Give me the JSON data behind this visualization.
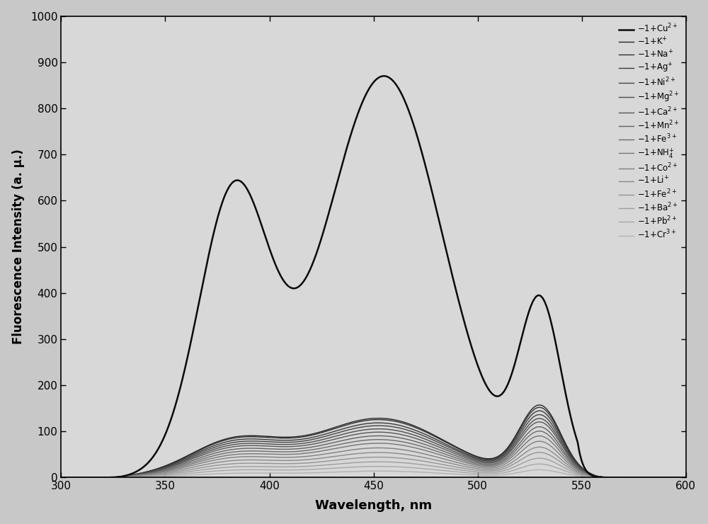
{
  "xlabel": "Wavelength, nm",
  "ylabel": "Fluorescence Intensity (a. μ.)",
  "xlim": [
    300,
    600
  ],
  "ylim": [
    0,
    1000
  ],
  "yticks": [
    0,
    100,
    200,
    300,
    400,
    500,
    600,
    700,
    800,
    900,
    1000
  ],
  "xticks": [
    300,
    350,
    400,
    450,
    500,
    550,
    600
  ],
  "legend_entries": [
    "1+Cu$^{2+}$",
    "1+K$^{+}$",
    "1+Na$^{+}$",
    "1+Ag$^{+}$",
    "1+Ni$^{2+}$",
    "1+Mg$^{2+}$",
    "1+Ca$^{2+}$",
    "1+Mn$^{2+}$",
    "1+Fe$^{3+}$",
    "1+NH$_{4}^{+}$",
    "1+Co$^{2+}$",
    "1+Li$^{+}$",
    "1+Fe$^{2+}$",
    "1+Ba$^{2+}$",
    "1+Pb$^{2+}$",
    "1+Cr$^{3+}$"
  ],
  "bg_color": "#c8c8c8",
  "plot_bg_color": "#d8d8d8"
}
